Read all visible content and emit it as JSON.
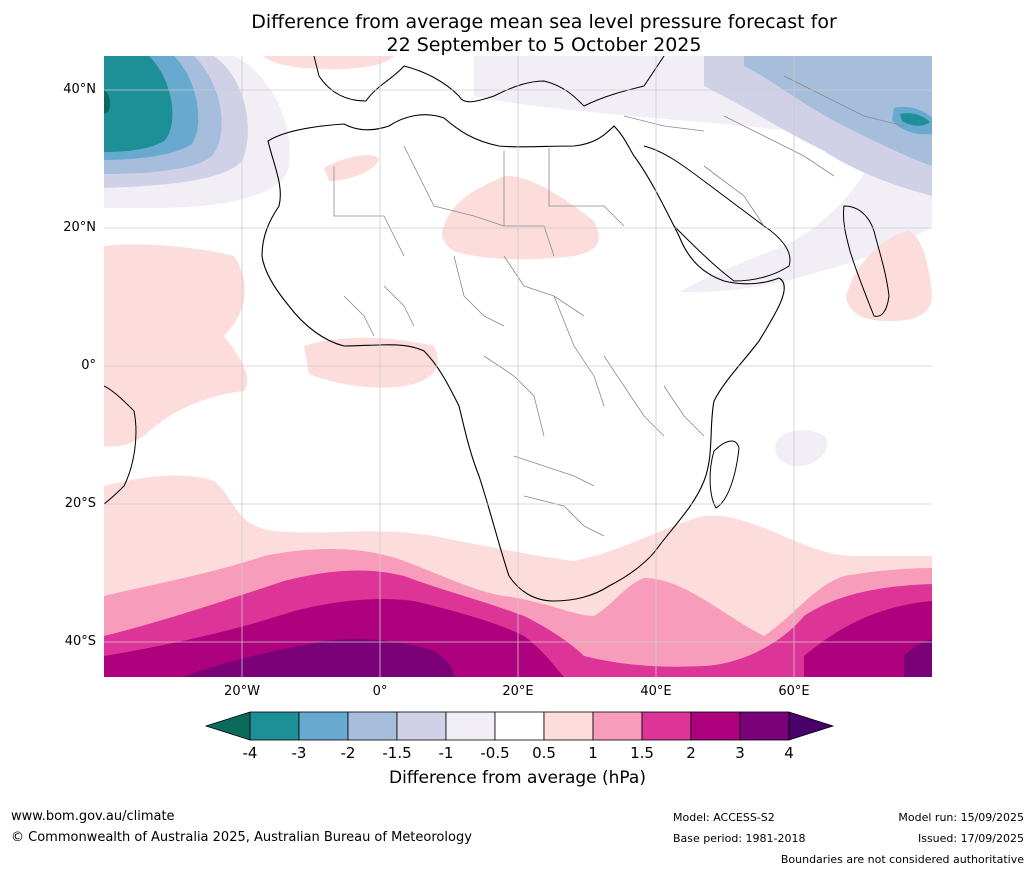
{
  "title": {
    "line1": "Difference from average mean sea level pressure forecast for",
    "line2": "22 September to 5 October 2025"
  },
  "map": {
    "lat_labels": [
      "40°N",
      "20°N",
      "0°",
      "20°S",
      "40°S"
    ],
    "lon_labels": [
      "20°W",
      "0°",
      "20°E",
      "40°E",
      "60°E"
    ],
    "ocean_color": "#ffffff",
    "land_outline_color": "#000000",
    "border_color": "#8a8a8a",
    "grid_color": "#cccccc"
  },
  "colorbar": {
    "ticks": [
      "-4",
      "-3",
      "-2",
      "-1.5",
      "-1",
      "-0.5",
      "0.5",
      "1",
      "1.5",
      "2",
      "3",
      "4"
    ],
    "colors": [
      "#0b6a5b",
      "#1c9096",
      "#67a9cf",
      "#a6bddb",
      "#d0d1e6",
      "#f1eef6",
      "#ffffff",
      "#fddcdc",
      "#f79cbb",
      "#dd3497",
      "#ae017e",
      "#7a0177",
      "#49006a"
    ],
    "label": "Difference from average (hPa)"
  },
  "footer": {
    "url": "www.bom.gov.au/climate",
    "copyright": "© Commonwealth of Australia 2025, Australian Bureau of Meteorology",
    "model": "Model: ACCESS-S2",
    "base_period": "Base period: 1981-2018",
    "model_run": "Model run: 15/09/2025",
    "issued": "Issued: 17/09/2025",
    "disclaimer": "Boundaries are not considered authoritative"
  }
}
